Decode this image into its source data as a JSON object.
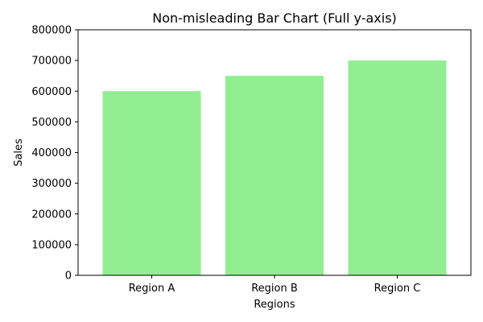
{
  "chart_data": {
    "type": "bar",
    "title": "Non-misleading Bar Chart (Full y-axis)",
    "xlabel": "Regions",
    "ylabel": "Sales",
    "categories": [
      "Region A",
      "Region B",
      "Region C"
    ],
    "values": [
      600000,
      650000,
      700000
    ],
    "ylim": [
      0,
      800000
    ],
    "yticks": [
      0,
      100000,
      200000,
      300000,
      400000,
      500000,
      600000,
      700000,
      800000
    ],
    "bar_color": "#90ee90",
    "grid": false
  }
}
